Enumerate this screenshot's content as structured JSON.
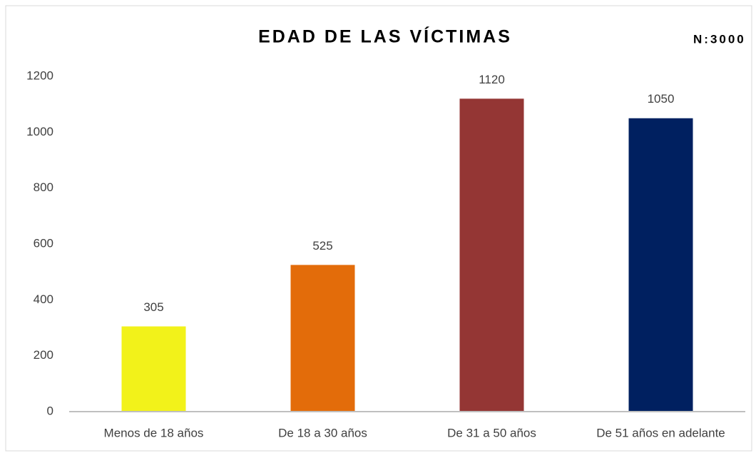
{
  "chart_data": {
    "type": "bar",
    "title": "EDAD DE LAS VÍCTIMAS",
    "annotation": "N:3000",
    "categories": [
      "Menos de 18 años",
      "De 18 a 30 años",
      "De 31 a 50 años",
      "De 51 años en adelante"
    ],
    "values": [
      305,
      525,
      1120,
      1050
    ],
    "colors": [
      "#f2f21a",
      "#e36c0a",
      "#943634",
      "#002060"
    ],
    "ylim": [
      0,
      1200
    ],
    "yticks": [
      0,
      200,
      400,
      600,
      800,
      1000,
      1200
    ],
    "grid": false
  }
}
